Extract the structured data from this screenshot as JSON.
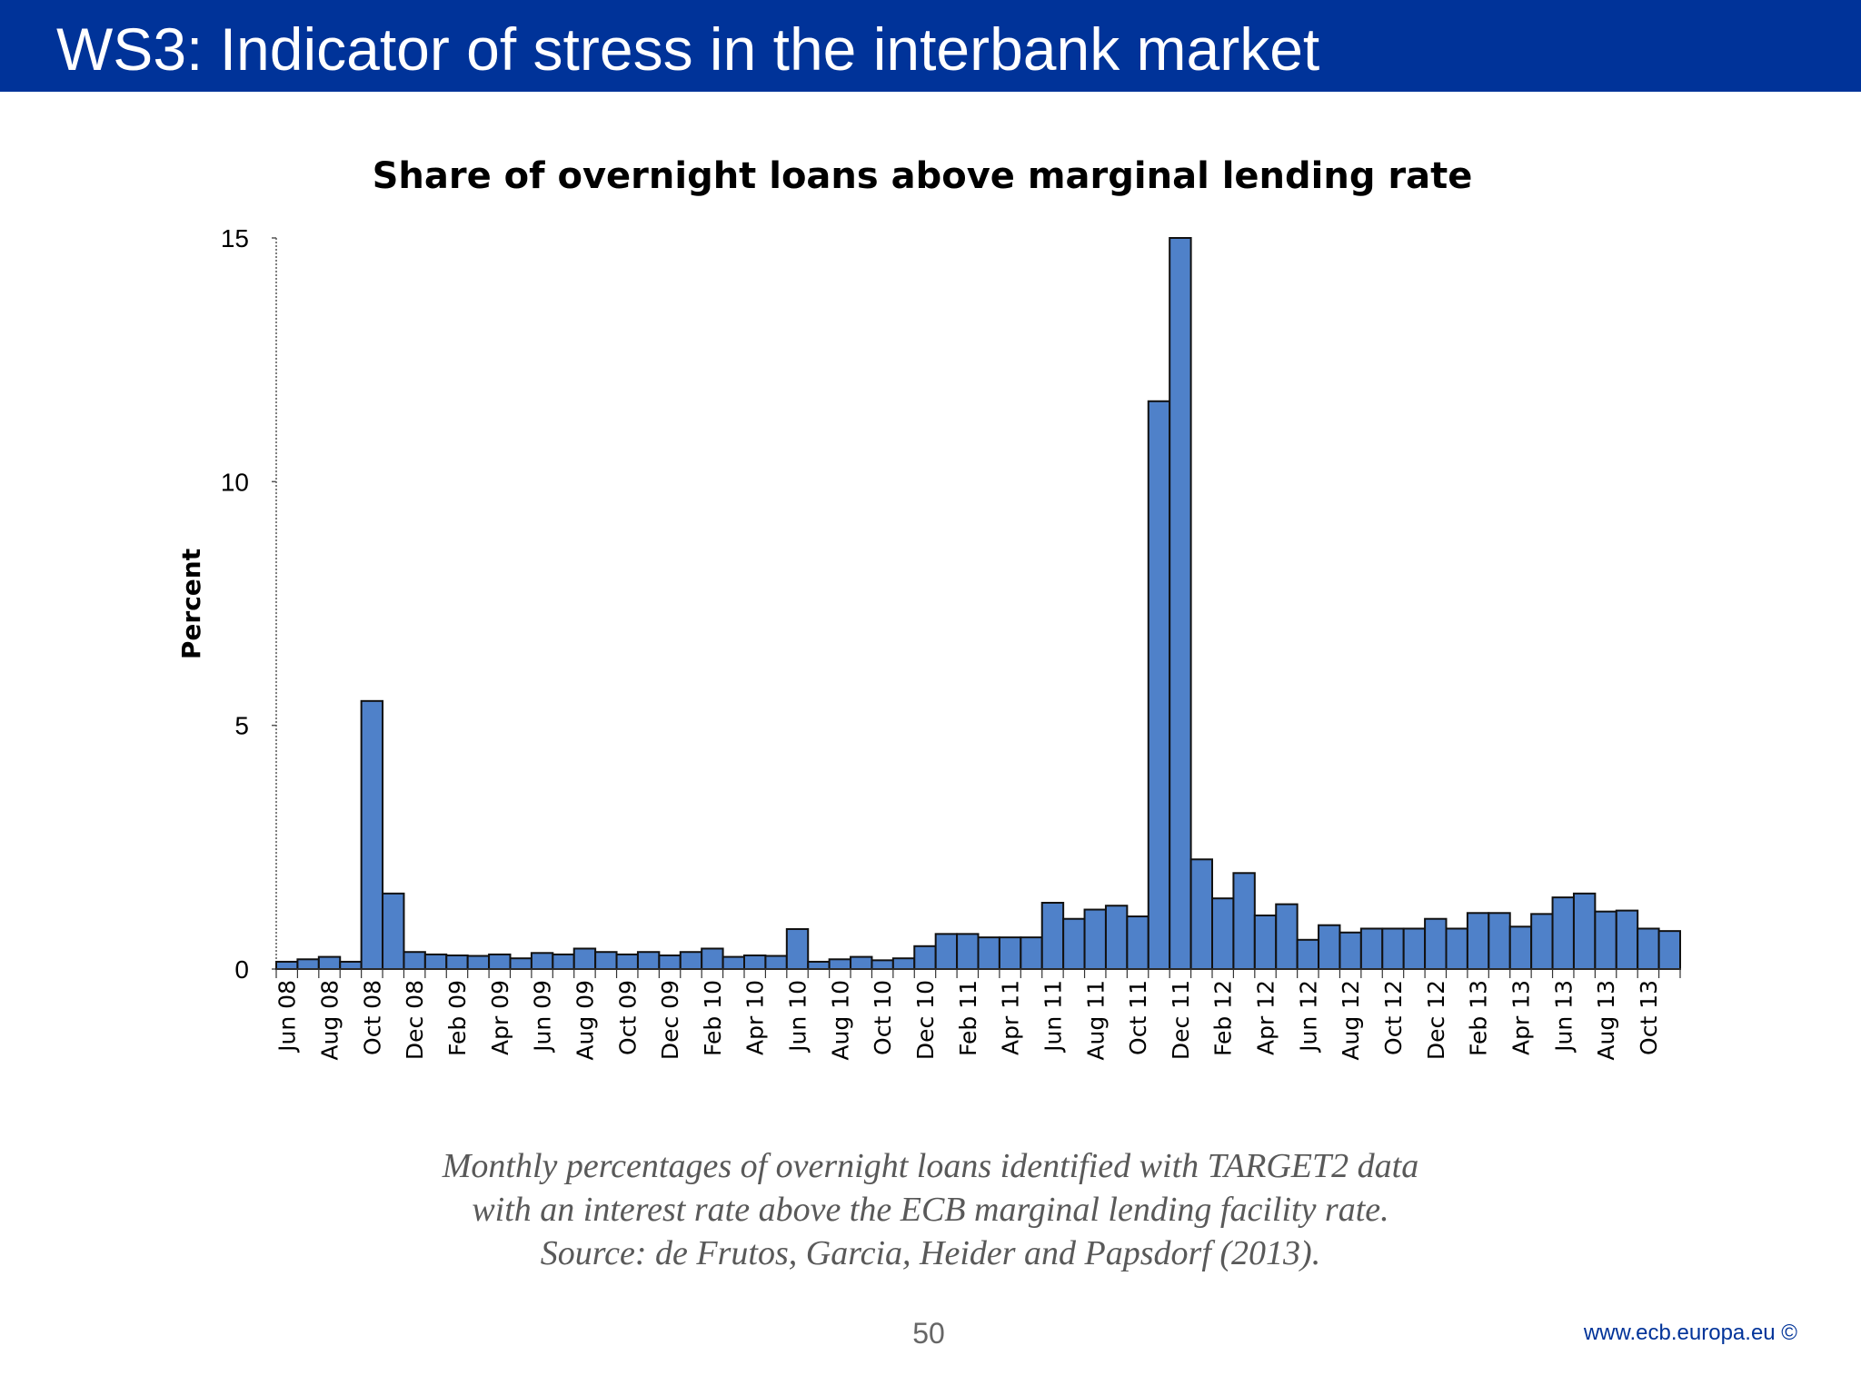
{
  "slide": {
    "title": "WS3: Indicator of stress in the interbank market",
    "caption_lines": [
      "Monthly percentages of overnight loans identified with TARGET2 data",
      "with an interest rate above the ECB marginal lending facility rate.",
      "Source: de Frutos, Garcia, Heider and Papsdorf  (2013)."
    ],
    "page_number": "50",
    "footer_url": "www.ecb.europa.eu ©",
    "header_color": "#003399"
  },
  "chart_data": {
    "type": "bar",
    "title": "Share of overnight loans above marginal lending rate",
    "ylabel": "Percent",
    "xlabel": "",
    "ylim": [
      0,
      15
    ],
    "yticks": [
      0,
      5,
      10,
      15
    ],
    "bar_color": "#4f81c9",
    "grid": false,
    "legend": "none",
    "tick_labels": [
      "Jun 08",
      "Aug 08",
      "Oct 08",
      "Dec 08",
      "Feb 09",
      "Apr 09",
      "Jun 09",
      "Aug 09",
      "Oct 09",
      "Dec 09",
      "Feb 10",
      "Apr 10",
      "Jun 10",
      "Aug 10",
      "Oct 10",
      "Dec 10",
      "Feb 11",
      "Apr 11",
      "Jun 11",
      "Aug 11",
      "Oct 11",
      "Dec 11",
      "Feb 12",
      "Apr 12",
      "Jun 12",
      "Aug 12",
      "Oct 12",
      "Dec 12",
      "Feb 13",
      "Apr 13",
      "Jun 13",
      "Aug 13",
      "Oct 13"
    ],
    "categories": [
      "Jun 08",
      "Jul 08",
      "Aug 08",
      "Sep 08",
      "Oct 08",
      "Nov 08",
      "Dec 08",
      "Jan 09",
      "Feb 09",
      "Mar 09",
      "Apr 09",
      "May 09",
      "Jun 09",
      "Jul 09",
      "Aug 09",
      "Sep 09",
      "Oct 09",
      "Nov 09",
      "Dec 09",
      "Jan 10",
      "Feb 10",
      "Mar 10",
      "Apr 10",
      "May 10",
      "Jun 10",
      "Jul 10",
      "Aug 10",
      "Sep 10",
      "Oct 10",
      "Nov 10",
      "Dec 10",
      "Jan 11",
      "Feb 11",
      "Mar 11",
      "Apr 11",
      "May 11",
      "Jun 11",
      "Jul 11",
      "Aug 11",
      "Sep 11",
      "Oct 11",
      "Nov 11",
      "Dec 11",
      "Jan 12",
      "Feb 12",
      "Mar 12",
      "Apr 12",
      "May 12",
      "Jun 12",
      "Jul 12",
      "Aug 12",
      "Sep 12",
      "Oct 12",
      "Nov 12",
      "Dec 12",
      "Jan 13",
      "Feb 13",
      "Mar 13",
      "Apr 13",
      "May 13",
      "Jun 13",
      "Jul 13",
      "Aug 13",
      "Sep 13",
      "Oct 13",
      "Nov 13"
    ],
    "values": [
      0.15,
      0.2,
      0.25,
      0.15,
      5.5,
      1.55,
      0.35,
      0.3,
      0.28,
      0.27,
      0.3,
      0.22,
      0.33,
      0.3,
      0.42,
      0.35,
      0.3,
      0.35,
      0.28,
      0.35,
      0.42,
      0.25,
      0.28,
      0.27,
      0.82,
      0.15,
      0.2,
      0.25,
      0.18,
      0.22,
      0.47,
      0.72,
      0.72,
      0.65,
      0.65,
      0.65,
      1.36,
      1.03,
      1.22,
      1.3,
      1.08,
      11.65,
      15.0,
      2.25,
      1.45,
      1.97,
      1.1,
      1.33,
      0.6,
      0.9,
      0.75,
      0.83,
      0.83,
      0.83,
      1.03,
      0.83,
      1.15,
      1.15,
      0.87,
      1.13,
      1.47,
      1.55,
      1.18,
      1.2,
      0.83,
      0.78
    ]
  }
}
